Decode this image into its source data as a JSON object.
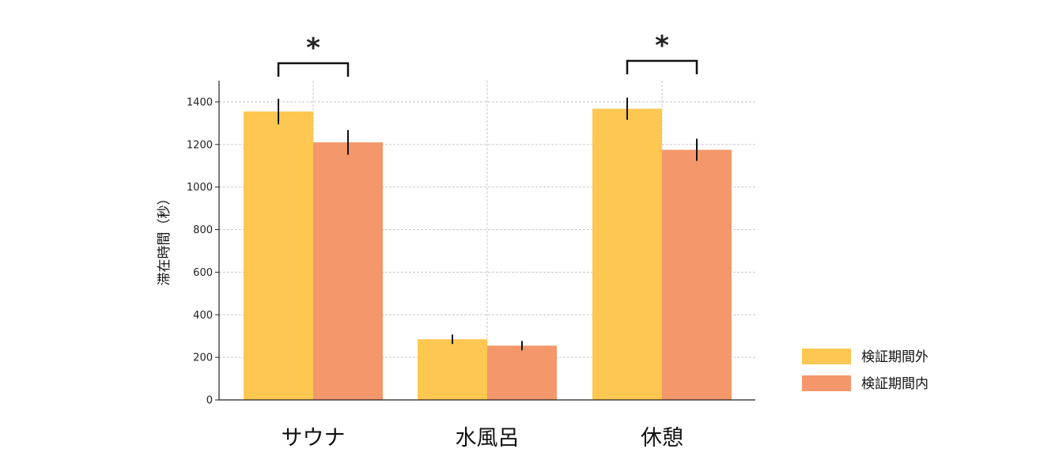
{
  "chart_data": {
    "type": "bar",
    "categories": [
      "サウナ",
      "水風呂",
      "休憩"
    ],
    "series": [
      {
        "name": "検証期間外",
        "color": "#FDC751",
        "values": [
          1355,
          285,
          1368
        ],
        "errors": [
          60,
          22,
          52
        ]
      },
      {
        "name": "検証期間内",
        "color": "#F4976A",
        "values": [
          1210,
          255,
          1175
        ],
        "errors": [
          58,
          22,
          52
        ]
      }
    ],
    "ylabel": "滞在時間（秒）",
    "xlabel": "",
    "ylim": [
      0,
      1500
    ],
    "yticks": [
      0,
      200,
      400,
      600,
      800,
      1000,
      1200,
      1400
    ],
    "grid": true,
    "legend_position": "right",
    "significance": [
      {
        "category_index": 0,
        "label": "*"
      },
      {
        "category_index": 2,
        "label": "*"
      }
    ]
  }
}
